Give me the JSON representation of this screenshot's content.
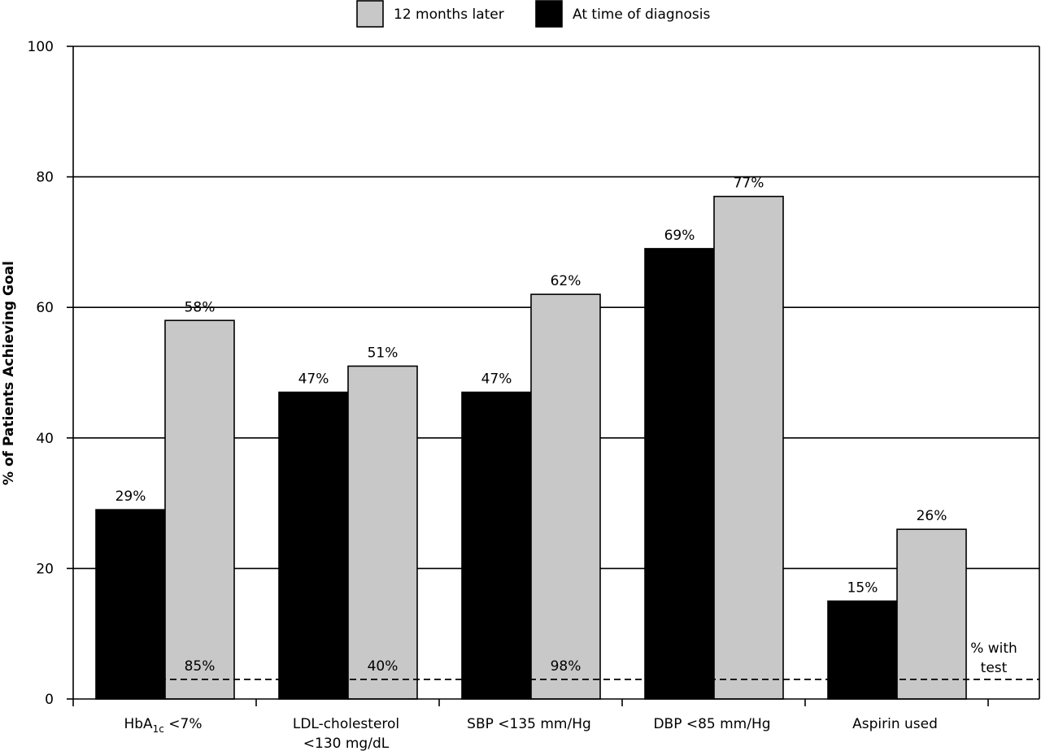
{
  "chart_data": {
    "type": "bar",
    "ylabel": "% of Patients Achieving Goal",
    "ylim": [
      0,
      100
    ],
    "yticks": [
      "0",
      "20",
      "40",
      "60",
      "80",
      "100"
    ],
    "grid": true,
    "legend_position": "top",
    "categories": [
      {
        "main": "HbA",
        "sub": "1c",
        "tail": " <7%",
        "line2": ""
      },
      {
        "main": "LDL-cholesterol",
        "sub": "",
        "tail": "",
        "line2": "<130 mg/dL"
      },
      {
        "main": "SBP <135 mm/Hg",
        "sub": "",
        "tail": "",
        "line2": ""
      },
      {
        "main": "DBP <85 mm/Hg",
        "sub": "",
        "tail": "",
        "line2": ""
      },
      {
        "main": "Aspirin used",
        "sub": "",
        "tail": "",
        "line2": ""
      }
    ],
    "series": [
      {
        "name": "At time of diagnosis",
        "color": "#000000",
        "values": [
          29,
          47,
          47,
          69,
          15
        ],
        "labels": [
          "29%",
          "47%",
          "47%",
          "69%",
          "15%"
        ]
      },
      {
        "name": "12 months later",
        "color": "#c8c8c8",
        "values": [
          58,
          51,
          62,
          77,
          26
        ],
        "labels": [
          "58%",
          "51%",
          "62%",
          "77%",
          "26%"
        ]
      }
    ],
    "legend_order": [
      1,
      0
    ],
    "test_line": {
      "value": 3,
      "labels": [
        "85%",
        "40%",
        "98%",
        "",
        ""
      ],
      "caption_line1": "% with",
      "caption_line2": "test"
    }
  }
}
